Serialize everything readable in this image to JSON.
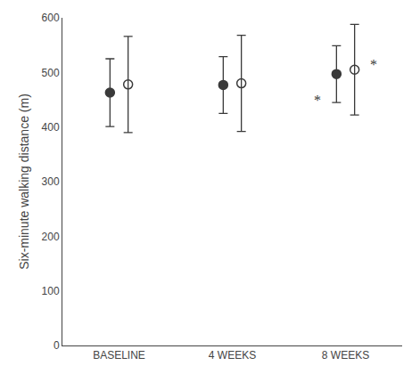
{
  "chart_data": {
    "type": "scatter",
    "categories": [
      "BASELINE",
      "4 WEEKS",
      "8 WEEKS"
    ],
    "series": [
      {
        "marker": "filled",
        "color": "#3a3a3a",
        "values": [
          463,
          477,
          497
        ],
        "errors": [
          62,
          52,
          52
        ],
        "annotations": [
          {
            "text": "*",
            "x": "8 WEEKS",
            "y": 449
          }
        ]
      },
      {
        "marker": "open",
        "color": "#3a3a3a",
        "values": [
          478,
          480,
          505
        ],
        "errors": [
          88,
          88,
          83
        ],
        "annotations": [
          {
            "text": "*",
            "x": "8 WEEKS",
            "y": 514
          }
        ]
      }
    ],
    "ylabel": "Six-minute walking distance (m)",
    "ylim": [
      0,
      600
    ],
    "yticks": [
      0,
      100,
      200,
      300,
      400,
      500,
      600
    ],
    "grid": false
  }
}
